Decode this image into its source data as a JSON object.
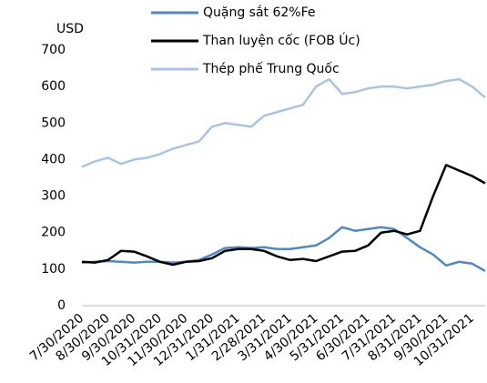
{
  "chart_data": {
    "type": "line",
    "y_label": "USD",
    "categories": [
      "7/30/2020",
      null,
      "8/30/2020",
      null,
      "9/30/2020",
      null,
      "10/31/2020",
      null,
      "11/30/2020",
      null,
      "12/31/2020",
      null,
      "1/31/2021",
      null,
      "2/28/2021",
      null,
      "3/31/2021",
      null,
      "4/30/2021",
      null,
      "5/31/2021",
      null,
      "6/30/2021",
      null,
      "7/31/2021",
      null,
      "8/31/2021",
      null,
      "9/30/2021",
      null,
      "10/31/2021",
      null
    ],
    "series": [
      {
        "name": "Quặng sắt 62%Fe",
        "color": "#4f89c7",
        "values": [
          118,
          120,
          122,
          120,
          118,
          120,
          120,
          118,
          120,
          125,
          140,
          158,
          160,
          158,
          160,
          155,
          155,
          160,
          165,
          185,
          215,
          205,
          210,
          215,
          210,
          185,
          160,
          140,
          110,
          120,
          115,
          95
        ]
      },
      {
        "name": "Than luyện cốc (FOB Úc)",
        "color": "#000000",
        "values": [
          120,
          118,
          125,
          150,
          148,
          135,
          120,
          112,
          120,
          122,
          130,
          150,
          155,
          155,
          150,
          135,
          125,
          128,
          122,
          135,
          148,
          150,
          165,
          200,
          205,
          195,
          205,
          300,
          385,
          370,
          355,
          335
        ]
      },
      {
        "name": "Thép phế Trung Quốc",
        "color": "#a9c3e6",
        "values": [
          380,
          395,
          405,
          388,
          400,
          405,
          415,
          430,
          440,
          450,
          490,
          500,
          495,
          490,
          520,
          530,
          540,
          550,
          600,
          620,
          580,
          585,
          595,
          600,
          600,
          595,
          600,
          605,
          615,
          620,
          600,
          570
        ]
      }
    ],
    "ylim": [
      0,
      700
    ],
    "yticks": [
      0,
      100,
      200,
      300,
      400,
      500,
      600,
      700
    ],
    "grid": false,
    "legend": "top"
  }
}
